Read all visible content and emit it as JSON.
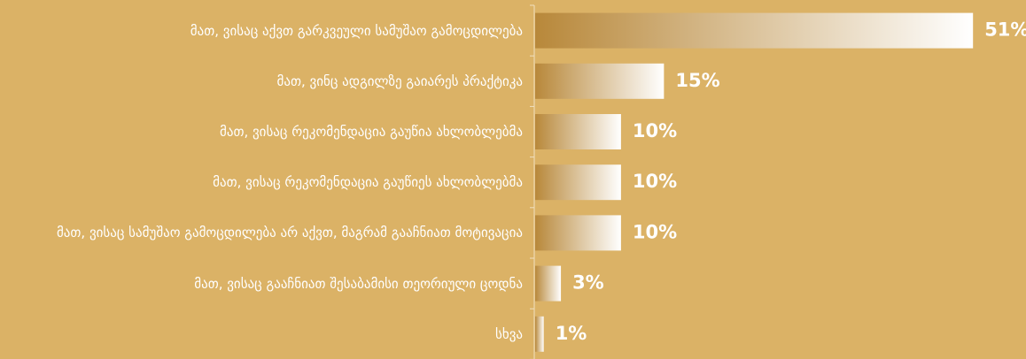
{
  "chart_data": {
    "type": "bar",
    "orientation": "horizontal",
    "categories": [
      "მათ, ვისაც აქვთ გარკვეული სამუშაო გამოცდილება",
      "მათ, ვინც ადგილზე გაიარეს პრაქტიკა",
      "მათ, ვისაც რეკომენდაცია გაუწია ახლობლებმა",
      "მათ, ვისაც რეკომენდაცია გაუწიეს ახლობლებმა",
      "მათ, ვისაც სამუშაო გამოცდილება არ აქვთ, მაგრამ გააჩნიათ მოტივაცია",
      "მათ, ვისაც გააჩნიათ შესაბამისი თეორიული ცოდნა",
      "სხვა"
    ],
    "values": [
      51,
      15,
      10,
      10,
      10,
      3,
      1
    ],
    "value_labels": [
      "51%",
      "15%",
      "10%",
      "10%",
      "10%",
      "3%",
      "1%"
    ],
    "color": "#b8883a"
  }
}
